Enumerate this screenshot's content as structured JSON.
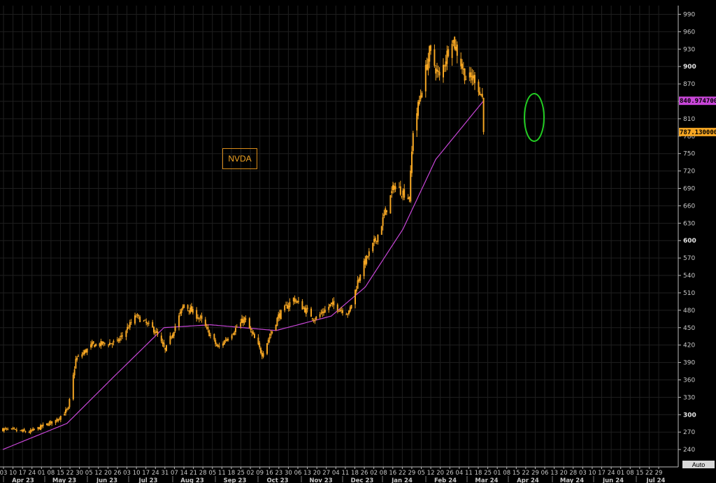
{
  "ticker": "NVDA",
  "auto_label": "Auto",
  "colors": {
    "background": "#000000",
    "grid": "#1f1f1f",
    "candles": "#f5a623",
    "moving_average": "#c846d8",
    "highlight_ellipse": "#22cc22",
    "last_price_tag": "#f5a623",
    "ma_tag": "#c846d8"
  },
  "chart_data": {
    "type": "candlestick",
    "title": "",
    "grid": true,
    "y_axis_side": "right",
    "ylim": [
      210,
      1005
    ],
    "y_ticks": [
      240,
      270,
      300,
      330,
      360,
      390,
      420,
      450,
      480,
      510,
      540,
      570,
      600,
      630,
      660,
      690,
      720,
      750,
      780,
      810,
      840,
      870,
      900,
      930,
      960,
      990
    ],
    "y_ticks_bold": [
      300,
      600,
      900
    ],
    "x_day_ticks": [
      "03",
      "10",
      "17",
      "24",
      "01",
      "08",
      "15",
      "22",
      "30",
      "05",
      "12",
      "20",
      "26",
      "03",
      "10",
      "17",
      "24",
      "31",
      "07",
      "14",
      "21",
      "28",
      "05",
      "11",
      "18",
      "25",
      "02",
      "09",
      "16",
      "23",
      "30",
      "06",
      "13",
      "20",
      "27",
      "04",
      "11",
      "18",
      "26",
      "02",
      "08",
      "16",
      "22",
      "29",
      "05",
      "12",
      "20",
      "26",
      "04",
      "11",
      "18",
      "25",
      "01",
      "08",
      "15",
      "22",
      "29",
      "06",
      "13",
      "20",
      "28",
      "03",
      "10",
      "17",
      "24",
      "01",
      "08",
      "15",
      "22",
      "29"
    ],
    "x_month_labels": [
      "Apr 23",
      "May 23",
      "Jun 23",
      "Jul 23",
      "Aug 23",
      "Sep 23",
      "Oct 23",
      "Nov 23",
      "Dec 23",
      "Jan 24",
      "Feb 24",
      "Mar 24",
      "Apr 24",
      "May 24",
      "Jun 24",
      "Jul 24"
    ],
    "price_anchors": [
      [
        "2023-04-03",
        275
      ],
      [
        "2023-04-24",
        270
      ],
      [
        "2023-05-15",
        290
      ],
      [
        "2023-05-25",
        310
      ],
      [
        "2023-05-31",
        395
      ],
      [
        "2023-06-13",
        420
      ],
      [
        "2023-07-03",
        425
      ],
      [
        "2023-07-18",
        470
      ],
      [
        "2023-08-02",
        445
      ],
      [
        "2023-08-10",
        410
      ],
      [
        "2023-08-25",
        490
      ],
      [
        "2023-09-07",
        465
      ],
      [
        "2023-09-21",
        415
      ],
      [
        "2023-10-12",
        465
      ],
      [
        "2023-10-26",
        405
      ],
      [
        "2023-11-08",
        470
      ],
      [
        "2023-11-20",
        500
      ],
      [
        "2023-12-07",
        465
      ],
      [
        "2023-12-20",
        490
      ],
      [
        "2024-01-03",
        475
      ],
      [
        "2024-01-12",
        545
      ],
      [
        "2024-01-26",
        610
      ],
      [
        "2024-02-08",
        695
      ],
      [
        "2024-02-20",
        675
      ],
      [
        "2024-02-23",
        790
      ],
      [
        "2024-03-07",
        925
      ],
      [
        "2024-03-15",
        880
      ],
      [
        "2024-03-25",
        950
      ],
      [
        "2024-04-05",
        880
      ],
      [
        "2024-04-12",
        880
      ],
      [
        "2024-04-18",
        846
      ],
      [
        "2024-04-19",
        787.13
      ]
    ],
    "moving_average_anchors": [
      [
        "2023-04-03",
        240
      ],
      [
        "2023-05-24",
        285
      ],
      [
        "2023-06-30",
        365
      ],
      [
        "2023-08-09",
        450
      ],
      [
        "2023-09-15",
        455
      ],
      [
        "2023-11-06",
        445
      ],
      [
        "2023-12-20",
        470
      ],
      [
        "2024-01-16",
        520
      ],
      [
        "2024-02-15",
        620
      ],
      [
        "2024-03-12",
        740
      ],
      [
        "2024-04-19",
        840.97
      ]
    ],
    "last_price": "787.130000",
    "moving_average_last": "840.974700",
    "annotation": "green ellipse circling the final 2024-04-19 candle"
  }
}
